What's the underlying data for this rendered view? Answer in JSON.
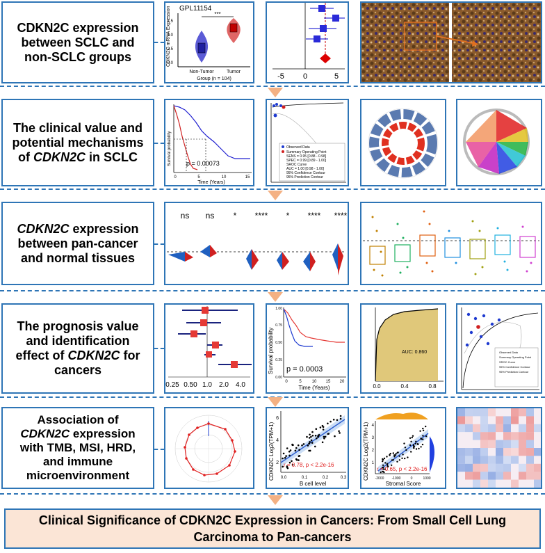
{
  "rows": [
    {
      "lines": [
        "CDKN2C expression",
        "between SCLC and",
        "non-SCLC groups"
      ],
      "italic_lines": []
    },
    {
      "lines": [
        "The clinical value and",
        "potential mechanisms",
        "of CDKN2C in SCLC"
      ],
      "italic_lines": []
    },
    {
      "lines": [
        "CDKN2C expression",
        "between pan-cancer",
        "and normal tissues"
      ],
      "italic_lines": []
    },
    {
      "lines": [
        "The prognosis value",
        "and identification",
        "effect of CDKN2C for",
        "cancers"
      ],
      "italic_lines": []
    },
    {
      "lines": [
        "Association of",
        "CDKN2C expression",
        "with TMB, MSI, HRD,",
        "and immune",
        "microenvironment"
      ],
      "italic_lines": []
    }
  ],
  "final_title": "Clinical Significance of CDKN2C Expression in Cancers: From Small Cell Lung Carcinoma to Pan-cancers",
  "colors": {
    "border": "#2e75b6",
    "arrow": "#f4b183",
    "final_bg": "#fbe5d6"
  },
  "violin": {
    "title": "GPL11154",
    "ylabel": "CDKN2C mRNA Expression",
    "xlabel": "Group (n = 104)",
    "groups": [
      "Non-Tumor",
      "Tumor"
    ],
    "sig": "***",
    "yticks": [
      "0.0",
      "2.5",
      "5.0",
      "7.5"
    ]
  },
  "forest1": {
    "xticks": [
      "-5",
      "0",
      "5"
    ]
  },
  "km1": {
    "ylabel": "Survival probability",
    "xlabel": "Time (Years)",
    "pval": "p = 0.00073",
    "xticks": [
      "0",
      "5",
      "10",
      "15"
    ]
  },
  "sroc": {
    "legend": [
      "Observed Data",
      "Summary Operating Point",
      "SENS = 0.95 [0.88 - 0.98]",
      "SPEC = 0.99 [0.89 - 1.00]",
      "SROC Curve",
      "AUC = 1.00 [0.98 - 1.00]",
      "95% Confidence Contour",
      "95% Prediction Contour"
    ]
  },
  "pancancer": {
    "sig_labels": [
      "ns",
      "ns",
      "*",
      "****",
      "*",
      "****",
      "****"
    ]
  },
  "km2": {
    "ylabel": "Survival probability",
    "xlabel": "Time (Years)",
    "pval": "p = 0.0003",
    "yticks": [
      "0.00",
      "0.25",
      "0.50",
      "0.75",
      "1.00"
    ],
    "xticks": [
      "0",
      "5",
      "10",
      "15",
      "20"
    ]
  },
  "forest2": {
    "xticks": [
      "0.25",
      "0.50",
      "1.0",
      "2.0",
      "4.0"
    ]
  },
  "roc": {
    "auc": "AUC: 0.860",
    "xticks": [
      "0.0",
      "0.4",
      "0.8"
    ]
  },
  "scatter1": {
    "ylabel": "CDKN2C Log2(TPM+1)",
    "xlabel": "B cell level",
    "stat": "r = 0.78, p < 2.2e-16",
    "xticks": [
      "0.0",
      "0.1",
      "0.2",
      "0.3"
    ],
    "yticks": [
      "2",
      "4",
      "6"
    ]
  },
  "scatter2": {
    "ylabel": "CDKN2C Log2(TPM+1)",
    "xlabel": "Stromal Score",
    "stat": "r = 0.65, p < 2.2e-16",
    "xticks": [
      "-2000",
      "-1000",
      "0",
      "1000"
    ],
    "yticks": [
      "1",
      "2",
      "3",
      "4"
    ]
  }
}
